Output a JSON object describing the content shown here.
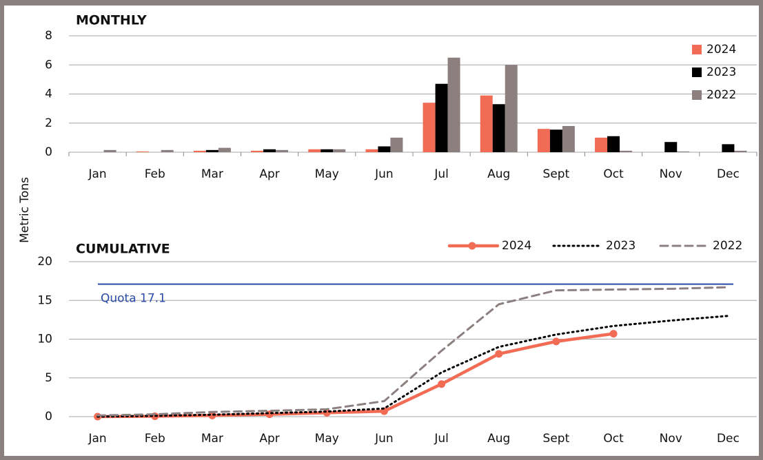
{
  "chart_data": [
    {
      "type": "bar",
      "title": "MONTHLY",
      "ylabel": "Metric Tons",
      "categories": [
        "Jan",
        "Feb",
        "Mar",
        "Apr",
        "May",
        "Jun",
        "Jul",
        "Aug",
        "Sept",
        "Oct",
        "Nov",
        "Dec"
      ],
      "series": [
        {
          "name": "2024",
          "color": "#f26b55",
          "values": [
            0,
            0.05,
            0.1,
            0.1,
            0.2,
            0.2,
            3.4,
            3.9,
            1.6,
            1.0,
            null,
            null
          ]
        },
        {
          "name": "2023",
          "color": "#000000",
          "values": [
            0,
            0,
            0.15,
            0.2,
            0.2,
            0.4,
            4.7,
            3.3,
            1.55,
            1.1,
            0.7,
            0.55
          ]
        },
        {
          "name": "2022",
          "color": "#8c7f7f",
          "values": [
            0.15,
            0.15,
            0.3,
            0.15,
            0.2,
            1.0,
            6.5,
            6.0,
            1.8,
            0.1,
            0.05,
            0.1
          ]
        }
      ],
      "ylim": [
        0,
        8
      ],
      "yticks": [
        0,
        2,
        4,
        6,
        8
      ],
      "grid": true,
      "legend": "upper right"
    },
    {
      "type": "line",
      "title": "CUMULATIVE",
      "categories": [
        "Jan",
        "Feb",
        "Mar",
        "Apr",
        "May",
        "Jun",
        "Jul",
        "Aug",
        "Sept",
        "Oct",
        "Nov",
        "Dec"
      ],
      "series": [
        {
          "name": "2024",
          "color": "#f26b55",
          "style": "solid",
          "values": [
            0,
            0.05,
            0.15,
            0.3,
            0.5,
            0.7,
            4.2,
            8.1,
            9.7,
            10.7,
            null,
            null
          ]
        },
        {
          "name": "2023",
          "color": "#000000",
          "style": "dotted",
          "values": [
            0,
            0.1,
            0.25,
            0.45,
            0.65,
            1.05,
            5.7,
            9.0,
            10.6,
            11.7,
            12.4,
            13.0
          ]
        },
        {
          "name": "2022",
          "color": "#8c7f7f",
          "style": "dashed",
          "values": [
            0.15,
            0.3,
            0.6,
            0.75,
            0.95,
            2.0,
            8.5,
            14.5,
            16.3,
            16.4,
            16.5,
            16.7
          ]
        }
      ],
      "annotations": [
        {
          "text": "Quota 17.1",
          "value": 17.1,
          "color": "#2a4aa8"
        }
      ],
      "ylim": [
        0,
        20
      ],
      "yticks": [
        0,
        5,
        10,
        15,
        20
      ],
      "grid": true,
      "legend": "top"
    }
  ]
}
